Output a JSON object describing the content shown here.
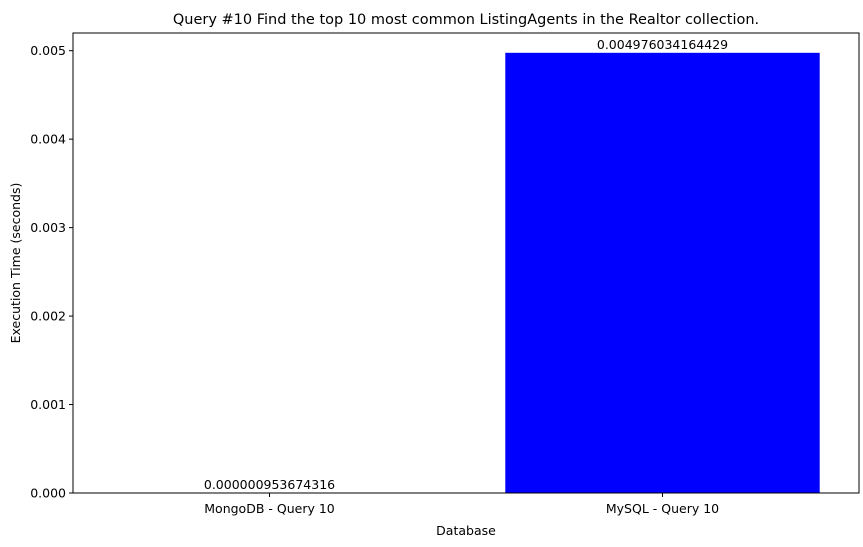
{
  "chart_data": {
    "type": "bar",
    "title": "Query #10 Find the top 10 most common ListingAgents in the Realtor collection.",
    "xlabel": "Database",
    "ylabel": "Execution Time (seconds)",
    "categories": [
      "MongoDB - Query 10",
      "MySQL - Query 10"
    ],
    "values": [
      9.53674316e-07,
      0.004976034164429
    ],
    "data_labels": [
      "0.000000953674316",
      "0.004976034164429"
    ],
    "bar_colors": [
      "#008000",
      "#0000ff"
    ],
    "ylim": [
      0,
      0.0052
    ],
    "yticks": [
      0,
      0.001,
      0.002,
      0.003,
      0.004,
      0.005
    ],
    "ytick_labels": [
      "0.000",
      "0.001",
      "0.002",
      "0.003",
      "0.004",
      "0.005"
    ],
    "grid": false,
    "legend": false
  }
}
